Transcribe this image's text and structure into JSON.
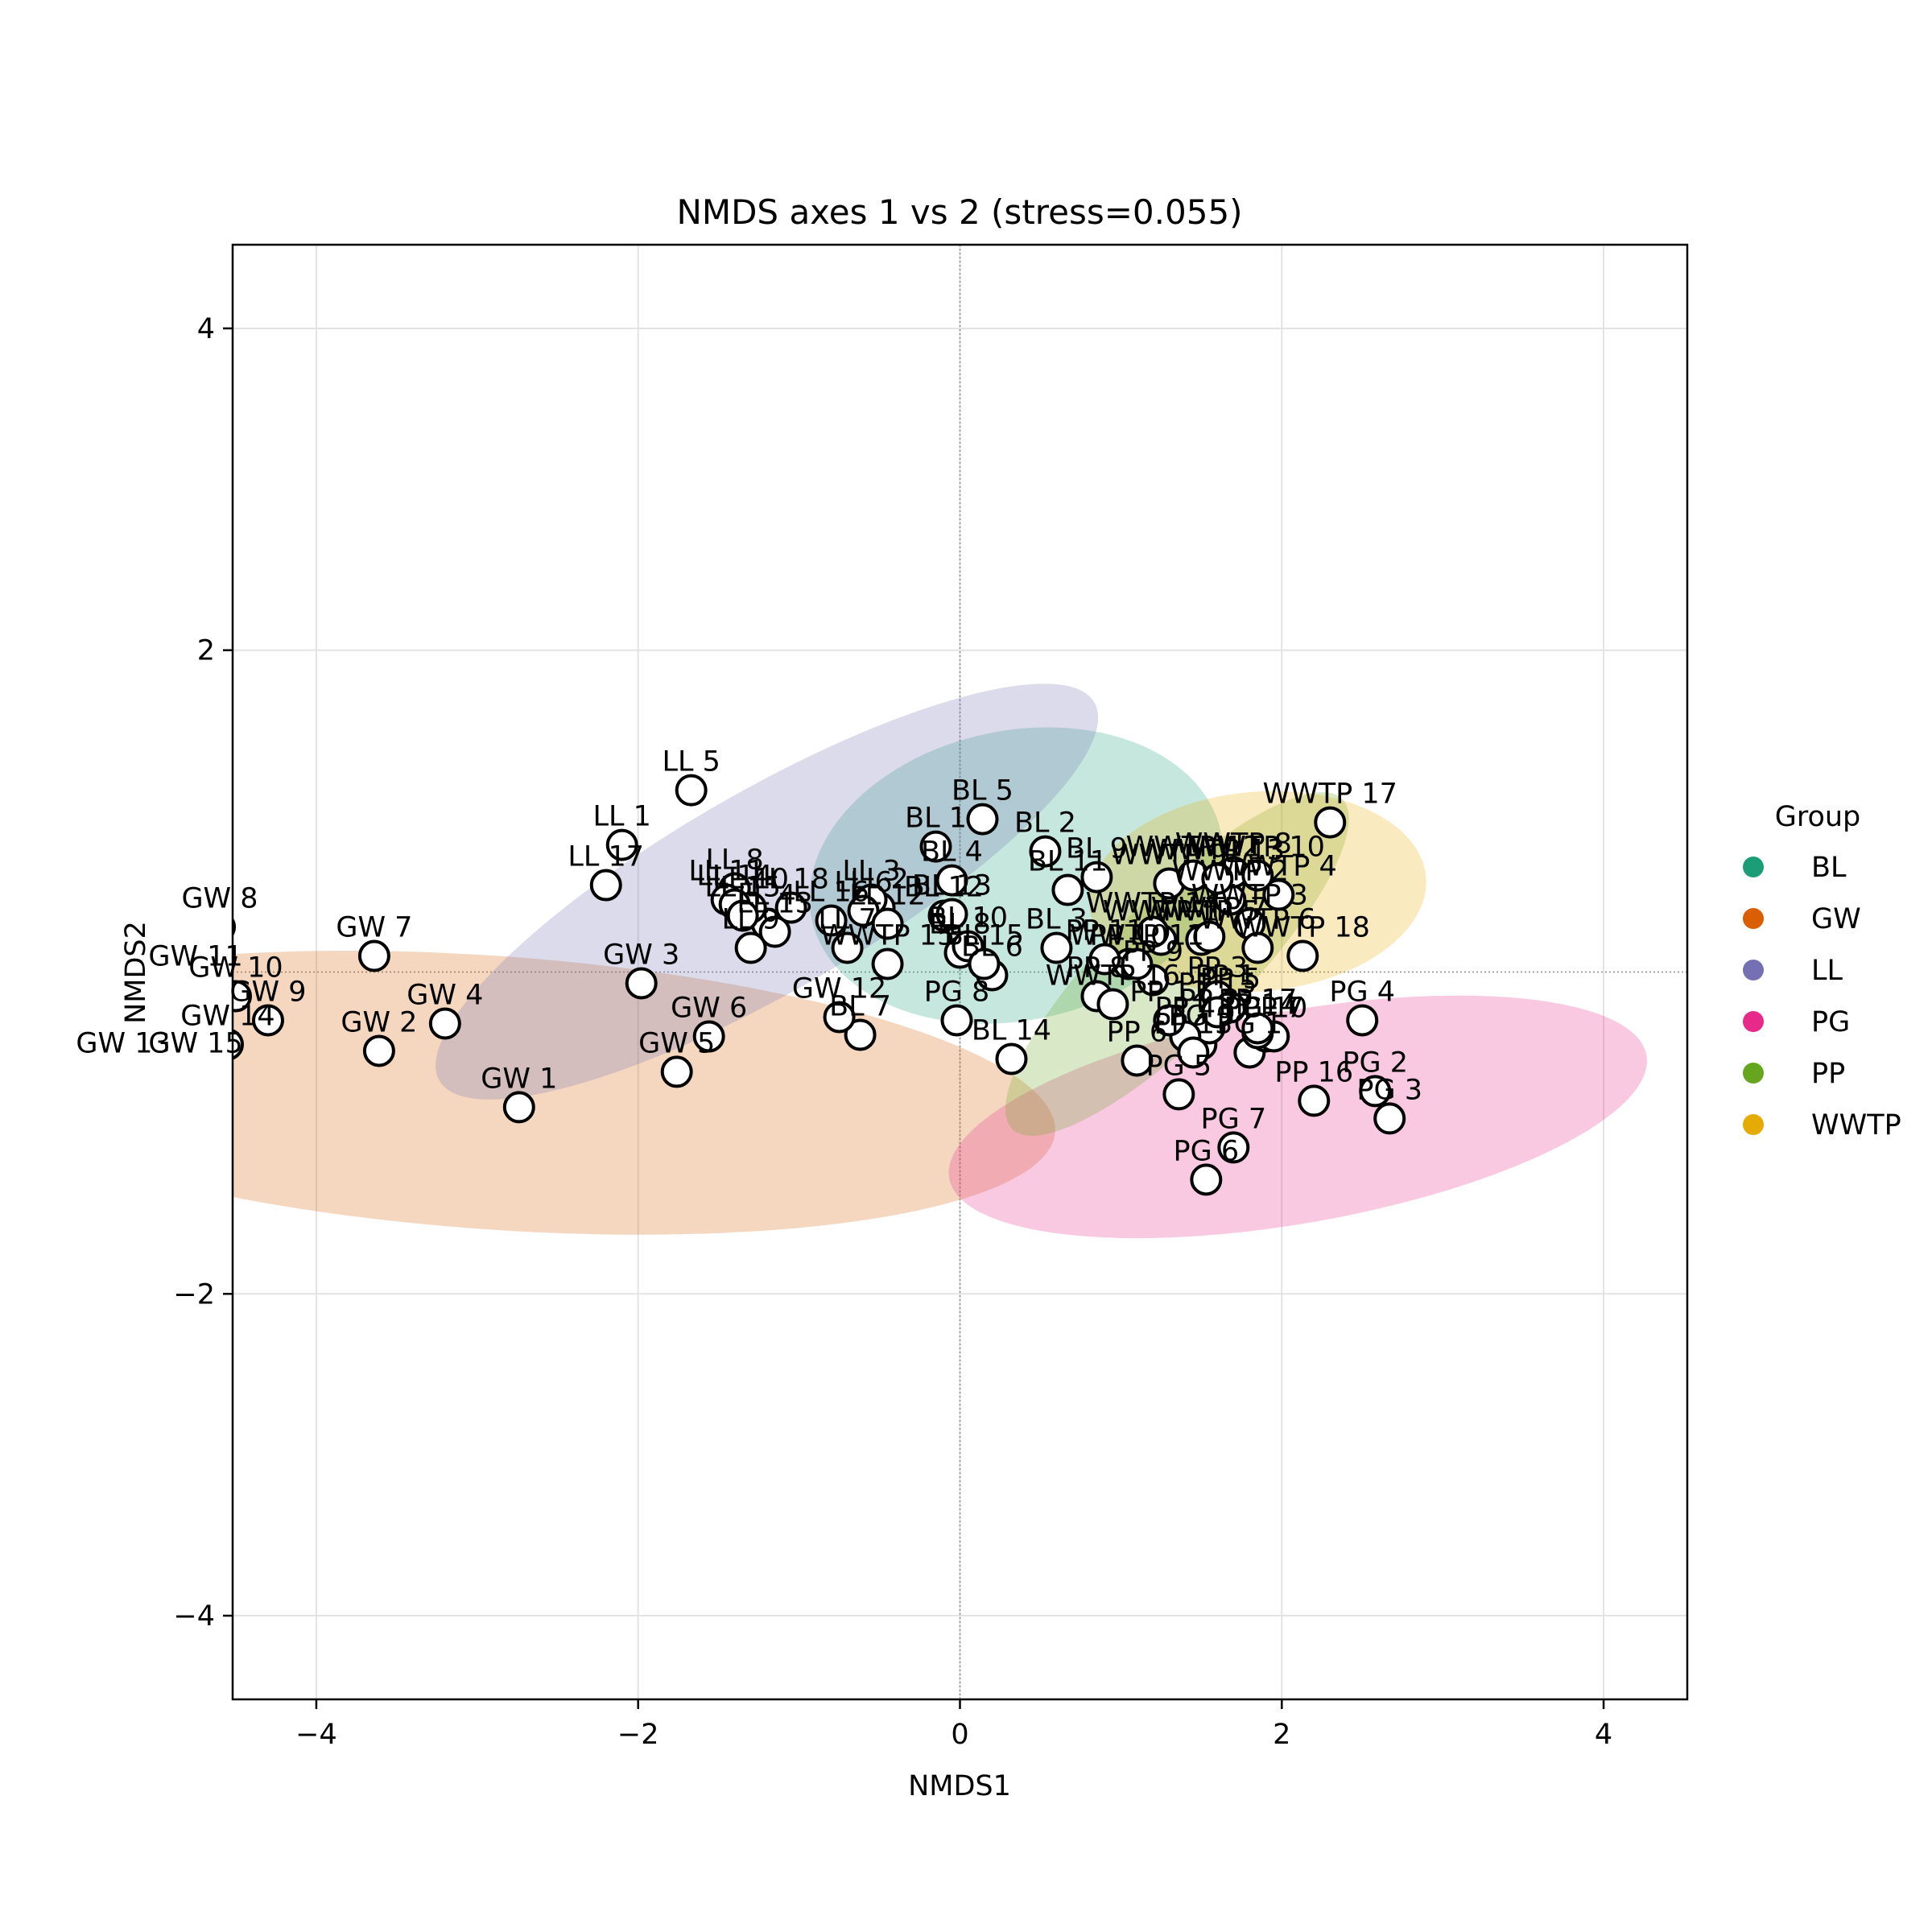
{
  "chart_data": {
    "type": "scatter",
    "title": "NMDS axes 1 vs 2 (stress=0.055)",
    "xlabel": "NMDS1",
    "ylabel": "NMDS2",
    "xlim": [
      -4.52,
      4.52
    ],
    "ylim": [
      -4.52,
      4.52
    ],
    "xticks": [
      -4,
      -2,
      0,
      2,
      4
    ],
    "yticks": [
      -4,
      -2,
      2,
      4
    ],
    "grid": true,
    "zero_lines": true,
    "legend": {
      "title": "Group",
      "placement": "right",
      "items": [
        {
          "name": "BL",
          "color": "#1b9e77"
        },
        {
          "name": "GW",
          "color": "#d95f02"
        },
        {
          "name": "LL",
          "color": "#7570b3"
        },
        {
          "name": "PG",
          "color": "#e7298a"
        },
        {
          "name": "PP",
          "color": "#66a61e"
        },
        {
          "name": "WWTP",
          "color": "#e6ab02"
        }
      ]
    },
    "ellipses": [
      {
        "group": "BL",
        "cx": 0.35,
        "cy": 0.6,
        "rx": 1.3,
        "ry": 0.9,
        "angle": -12
      },
      {
        "group": "GW",
        "cx": -2.9,
        "cy": -0.75,
        "rx": 3.5,
        "ry": 0.85,
        "angle": 4
      },
      {
        "group": "LL",
        "cx": -1.2,
        "cy": 0.5,
        "rx": 2.35,
        "ry": 0.62,
        "angle": -30
      },
      {
        "group": "PG",
        "cx": 2.1,
        "cy": -0.9,
        "rx": 2.2,
        "ry": 0.66,
        "angle": -10
      },
      {
        "group": "PP",
        "cx": 1.35,
        "cy": 0.05,
        "rx": 1.45,
        "ry": 0.42,
        "angle": -45
      },
      {
        "group": "WWTP",
        "cx": 1.85,
        "cy": 0.5,
        "rx": 1.05,
        "ry": 0.62,
        "angle": -5
      }
    ],
    "series": [
      {
        "name": "BL",
        "points": [
          {
            "label": "BL 1",
            "x": -0.15,
            "y": 0.78
          },
          {
            "label": "BL 2",
            "x": 0.53,
            "y": 0.75
          },
          {
            "label": "BL 3",
            "x": 0.6,
            "y": 0.15
          },
          {
            "label": "BL 4",
            "x": -0.05,
            "y": 0.57
          },
          {
            "label": "BL 5",
            "x": 0.14,
            "y": 0.95
          },
          {
            "label": "BL 6",
            "x": 0.2,
            "y": -0.02
          },
          {
            "label": "BL 7",
            "x": -0.62,
            "y": -0.39
          },
          {
            "label": "BL 8",
            "x": 0.0,
            "y": 0.12
          },
          {
            "label": "BL 9",
            "x": 0.85,
            "y": 0.59
          },
          {
            "label": "BL 10",
            "x": 0.05,
            "y": 0.16
          },
          {
            "label": "BL 11",
            "x": 0.67,
            "y": 0.51
          },
          {
            "label": "BL 12",
            "x": -0.1,
            "y": 0.35
          },
          {
            "label": "BL 13",
            "x": -0.05,
            "y": 0.36
          },
          {
            "label": "BL 14",
            "x": 0.32,
            "y": -0.54
          },
          {
            "label": "BL 15",
            "x": 0.15,
            "y": 0.05
          }
        ]
      },
      {
        "name": "GW",
        "points": [
          {
            "label": "GW 1",
            "x": -2.74,
            "y": -0.84
          },
          {
            "label": "GW 2",
            "x": -3.61,
            "y": -0.49
          },
          {
            "label": "GW 3",
            "x": -1.98,
            "y": -0.07
          },
          {
            "label": "GW 4",
            "x": -3.2,
            "y": -0.32
          },
          {
            "label": "GW 5",
            "x": -1.76,
            "y": -0.62
          },
          {
            "label": "GW 6",
            "x": -1.56,
            "y": -0.4
          },
          {
            "label": "GW 7",
            "x": -3.64,
            "y": 0.1
          },
          {
            "label": "GW 8",
            "x": -4.6,
            "y": 0.28
          },
          {
            "label": "GW 9",
            "x": -4.3,
            "y": -0.3
          },
          {
            "label": "GW 10",
            "x": -4.5,
            "y": -0.15
          },
          {
            "label": "GW 11",
            "x": -4.75,
            "y": -0.08
          },
          {
            "label": "GW 12",
            "x": -0.75,
            "y": -0.28
          },
          {
            "label": "GW 13",
            "x": -5.2,
            "y": -0.62
          },
          {
            "label": "GW 14",
            "x": -4.55,
            "y": -0.45
          },
          {
            "label": "GW 15",
            "x": -4.75,
            "y": -0.62
          }
        ]
      },
      {
        "name": "LL",
        "points": [
          {
            "label": "LL 1",
            "x": -2.1,
            "y": 0.79
          },
          {
            "label": "LL 2",
            "x": -0.5,
            "y": 0.4
          },
          {
            "label": "LL 3",
            "x": -0.55,
            "y": 0.45
          },
          {
            "label": "LL 4",
            "x": -1.2,
            "y": 0.3
          },
          {
            "label": "LL 5",
            "x": -1.67,
            "y": 1.13
          },
          {
            "label": "LL 6",
            "x": -0.6,
            "y": 0.38
          },
          {
            "label": "LL 7",
            "x": -0.7,
            "y": 0.15
          },
          {
            "label": "LL 8",
            "x": -1.4,
            "y": 0.52
          },
          {
            "label": "LL 9",
            "x": -1.3,
            "y": 0.15
          },
          {
            "label": "LL 10",
            "x": -1.3,
            "y": 0.4
          },
          {
            "label": "LL 11",
            "x": -1.45,
            "y": 0.45
          },
          {
            "label": "LL 12",
            "x": -0.45,
            "y": 0.3
          },
          {
            "label": "LL 13",
            "x": -1.15,
            "y": 0.25
          },
          {
            "label": "LL 14",
            "x": -1.4,
            "y": 0.42
          },
          {
            "label": "LL 15",
            "x": -1.35,
            "y": 0.35
          },
          {
            "label": "LL 16",
            "x": -0.8,
            "y": 0.32
          },
          {
            "label": "LL 17",
            "x": -2.2,
            "y": 0.54
          },
          {
            "label": "LL 18",
            "x": -1.05,
            "y": 0.4
          }
        ]
      },
      {
        "name": "PG",
        "points": [
          {
            "label": "PG 1",
            "x": 1.8,
            "y": -0.5
          },
          {
            "label": "PG 2",
            "x": 2.58,
            "y": -0.74
          },
          {
            "label": "PG 3",
            "x": 2.67,
            "y": -0.91
          },
          {
            "label": "PG 4",
            "x": 2.5,
            "y": -0.3
          },
          {
            "label": "PG 5",
            "x": 1.36,
            "y": -0.76
          },
          {
            "label": "PG 6",
            "x": 1.53,
            "y": -1.29
          },
          {
            "label": "PG 7",
            "x": 1.7,
            "y": -1.09
          },
          {
            "label": "PG 8",
            "x": -0.02,
            "y": -0.3
          },
          {
            "label": "PG 9",
            "x": 1.5,
            "y": -0.45
          },
          {
            "label": "PG 10",
            "x": 1.9,
            "y": -0.4
          }
        ]
      },
      {
        "name": "PP",
        "points": [
          {
            "label": "PP 1",
            "x": 1.65,
            "y": -0.2
          },
          {
            "label": "PP 2",
            "x": 1.55,
            "y": -0.35
          },
          {
            "label": "PP 3",
            "x": 1.6,
            "y": -0.15
          },
          {
            "label": "PP 4",
            "x": 1.4,
            "y": -0.4
          },
          {
            "label": "PP 5",
            "x": 1.68,
            "y": -0.22
          },
          {
            "label": "PP 6",
            "x": 1.1,
            "y": -0.55
          },
          {
            "label": "PP 7",
            "x": 1.95,
            "y": -0.4
          },
          {
            "label": "PP 8",
            "x": 0.85,
            "y": -0.15
          },
          {
            "label": "PP 9",
            "x": 1.2,
            "y": -0.05
          },
          {
            "label": "PP 10",
            "x": 1.05,
            "y": 0.05
          },
          {
            "label": "PP 11",
            "x": 0.9,
            "y": 0.08
          },
          {
            "label": "PP 12",
            "x": 1.3,
            "y": -0.3
          },
          {
            "label": "PP 13",
            "x": 1.45,
            "y": -0.5
          },
          {
            "label": "PP 14",
            "x": 1.85,
            "y": -0.38
          },
          {
            "label": "PP 15",
            "x": 1.6,
            "y": -0.25
          },
          {
            "label": "PP 16",
            "x": 2.2,
            "y": -0.8
          },
          {
            "label": "PP 17",
            "x": 1.85,
            "y": -0.35
          }
        ]
      },
      {
        "name": "WWTP",
        "points": [
          {
            "label": "WWTP 1",
            "x": 1.25,
            "y": 0.2
          },
          {
            "label": "WWTP 2",
            "x": 1.68,
            "y": 0.45
          },
          {
            "label": "WWTP 3",
            "x": 1.8,
            "y": 0.3
          },
          {
            "label": "WWTP 4",
            "x": 1.98,
            "y": 0.48
          },
          {
            "label": "WWTP 5",
            "x": 1.5,
            "y": 0.2
          },
          {
            "label": "WWTP 6",
            "x": 1.85,
            "y": 0.15
          },
          {
            "label": "WWTP 7",
            "x": 1.55,
            "y": 0.22
          },
          {
            "label": "WWTP 8",
            "x": 1.7,
            "y": 0.62
          },
          {
            "label": "WWTP 9",
            "x": 1.3,
            "y": 0.55
          },
          {
            "label": "WWTP 10",
            "x": 1.85,
            "y": 0.6
          },
          {
            "label": "WWTP 11",
            "x": 1.1,
            "y": 0.05
          },
          {
            "label": "WWTP 12",
            "x": 1.45,
            "y": 0.6
          },
          {
            "label": "WWTP 13",
            "x": 1.6,
            "y": 0.58
          },
          {
            "label": "WWTP 14",
            "x": 1.2,
            "y": 0.25
          },
          {
            "label": "WWTP 15",
            "x": -0.45,
            "y": 0.05
          },
          {
            "label": "WWTP 16",
            "x": 0.95,
            "y": -0.2
          },
          {
            "label": "WWTP 17",
            "x": 2.3,
            "y": 0.93
          },
          {
            "label": "WWTP 18",
            "x": 2.13,
            "y": 0.1
          }
        ]
      }
    ]
  }
}
